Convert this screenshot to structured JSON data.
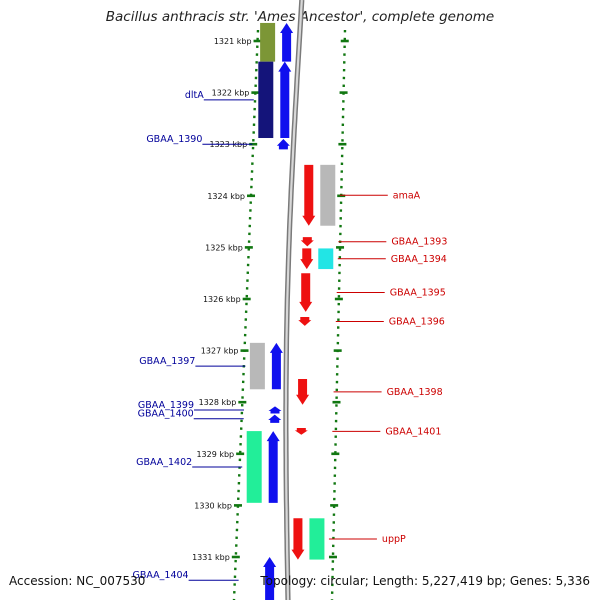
{
  "title": "Bacillus anthracis str. 'Ames Ancestor', complete genome",
  "footer": {
    "accession": "Accession: NC_007530",
    "topology": "Topology: circular; Length: 5,227,419 bp; Genes: 5,336"
  },
  "colors": {
    "forward": "#1010ee",
    "reverse": "#ee1111",
    "label_left": "#00009a",
    "label_right": "#cc0000",
    "ruler": "#117711",
    "backbone": "#888888",
    "cds_navy": "#14147a",
    "cds_olive": "#7c9636",
    "cds_gray": "#b8b8b8",
    "cds_cyan": "#22e5e5",
    "cds_green": "#22ee99"
  },
  "ticks": [
    {
      "label": "1321 kbp",
      "kbp": 1321
    },
    {
      "label": "1322 kbp",
      "kbp": 1322
    },
    {
      "label": "1323 kbp",
      "kbp": 1323
    },
    {
      "label": "1324 kbp",
      "kbp": 1324
    },
    {
      "label": "1325 kbp",
      "kbp": 1325
    },
    {
      "label": "1326 kbp",
      "kbp": 1326
    },
    {
      "label": "1327 kbp",
      "kbp": 1327
    },
    {
      "label": "1328 kbp",
      "kbp": 1328
    },
    {
      "label": "1329 kbp",
      "kbp": 1329
    },
    {
      "label": "1330 kbp",
      "kbp": 1330
    },
    {
      "label": "1331 kbp",
      "kbp": 1331
    }
  ],
  "genes": [
    {
      "name": "",
      "strand": "+",
      "start_kbp": 1320.65,
      "end_kbp": 1321.4,
      "cds_color": "olive"
    },
    {
      "name": "dltA",
      "strand": "+",
      "start_kbp": 1321.4,
      "end_kbp": 1322.88,
      "cds_color": "navy"
    },
    {
      "name": "GBAA_1390",
      "strand": "+",
      "start_kbp": 1322.9,
      "end_kbp": 1323.1,
      "cds_color": ""
    },
    {
      "name": "amaA",
      "strand": "-",
      "start_kbp": 1323.4,
      "end_kbp": 1324.58,
      "cds_color": "gray"
    },
    {
      "name": "GBAA_1393",
      "strand": "-",
      "start_kbp": 1324.8,
      "end_kbp": 1324.98,
      "cds_color": ""
    },
    {
      "name": "GBAA_1394",
      "strand": "-",
      "start_kbp": 1325.02,
      "end_kbp": 1325.42,
      "cds_color": "cyan"
    },
    {
      "name": "GBAA_1395",
      "strand": "-",
      "start_kbp": 1325.5,
      "end_kbp": 1326.25,
      "cds_color": ""
    },
    {
      "name": "GBAA_1396",
      "strand": "-",
      "start_kbp": 1326.35,
      "end_kbp": 1326.52,
      "cds_color": ""
    },
    {
      "name": "GBAA_1397",
      "strand": "+",
      "start_kbp": 1326.85,
      "end_kbp": 1327.75,
      "cds_color": "gray"
    },
    {
      "name": "GBAA_1398",
      "strand": "-",
      "start_kbp": 1327.55,
      "end_kbp": 1328.05,
      "cds_color": ""
    },
    {
      "name": "GBAA_1399",
      "strand": "+",
      "start_kbp": 1328.08,
      "end_kbp": 1328.22,
      "cds_color": ""
    },
    {
      "name": "GBAA_1400",
      "strand": "+",
      "start_kbp": 1328.24,
      "end_kbp": 1328.4,
      "cds_color": ""
    },
    {
      "name": "GBAA_1401",
      "strand": "-",
      "start_kbp": 1328.5,
      "end_kbp": 1328.63,
      "cds_color": ""
    },
    {
      "name": "GBAA_1402",
      "strand": "+",
      "start_kbp": 1328.56,
      "end_kbp": 1329.95,
      "cds_color": "green"
    },
    {
      "name": "uppP",
      "strand": "-",
      "start_kbp": 1330.25,
      "end_kbp": 1331.05,
      "cds_color": "green"
    },
    {
      "name": "GBAA_1404",
      "strand": "+",
      "start_kbp": 1331.0,
      "end_kbp": 1331.9,
      "cds_color": ""
    }
  ]
}
